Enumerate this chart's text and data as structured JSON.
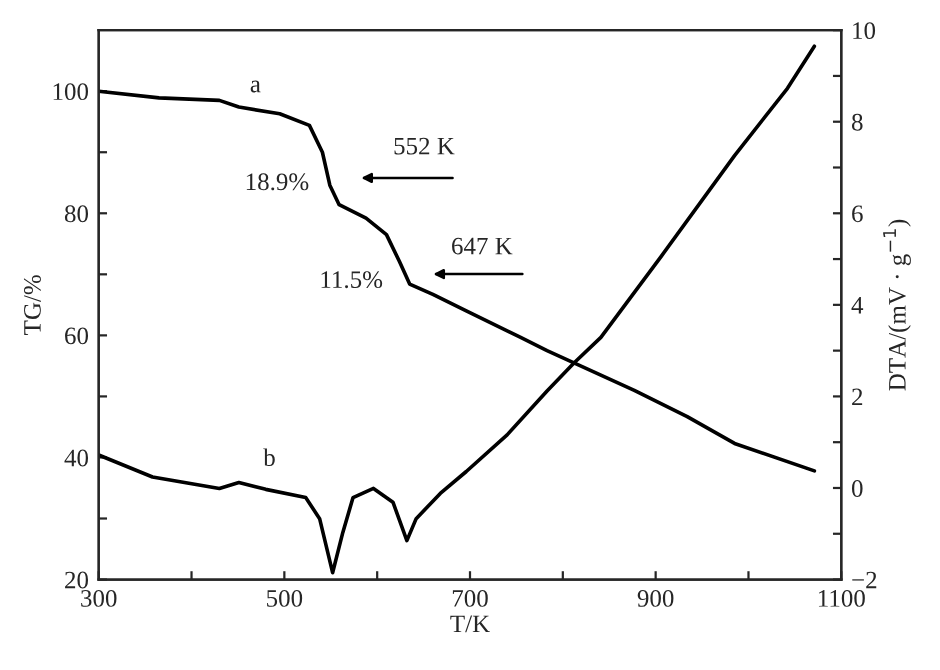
{
  "chart_data": {
    "type": "line",
    "xlabel": "T/K",
    "ylabel": "TG/%",
    "y2label": "DTA/(mV · g$^{−1}$)",
    "xlim": [
      300,
      1100
    ],
    "xticks": [
      300,
      {
        "value": 400,
        "label": null
      },
      500,
      {
        "value": 600,
        "label": null
      },
      700,
      {
        "value": 800,
        "label": null
      },
      900,
      {
        "value": 1000,
        "label": null
      },
      1100
    ],
    "ylim": [
      20,
      110
    ],
    "yticks": [
      20,
      {
        "value": 30,
        "label": null
      },
      40,
      {
        "value": 50,
        "label": null
      },
      60,
      {
        "value": 70,
        "label": null
      },
      80,
      {
        "value": 90,
        "label": null
      },
      100
    ],
    "y2lim": [
      -2,
      10
    ],
    "y2ticks": [
      {
        "value": -2,
        "label": "−2"
      },
      {
        "value": -1,
        "label": null
      },
      0,
      {
        "value": 1,
        "label": null
      },
      2,
      {
        "value": 3,
        "label": null
      },
      4,
      {
        "value": 5,
        "label": null
      },
      6,
      {
        "value": 7,
        "label": null
      },
      8,
      {
        "value": 9,
        "label": null
      },
      10
    ],
    "grid": false,
    "marker": "none",
    "line_style": "solid",
    "series": [
      {
        "color": "#000000",
        "x": [
          300,
          365,
          430,
          451,
          495,
          527,
          541,
          549,
          559,
          588,
          610,
          624,
          635,
          660,
          696,
          754,
          783,
          812,
          877,
          934,
          985,
          1071
        ],
        "values": [
          100,
          98.9,
          98.5,
          97.4,
          96.3,
          94.4,
          90.0,
          84.6,
          81.4,
          79.2,
          76.5,
          72.1,
          68.4,
          66.7,
          64.0,
          59.7,
          57.5,
          55.5,
          51.0,
          46.7,
          42.3,
          37.8
        ]
      },
      {
        "color": "#000000",
        "axis": "y2",
        "x": [
          300,
          358,
          430,
          451,
          480,
          523,
          538,
          552,
          563,
          574,
          596,
          617,
          632,
          642,
          668,
          696,
          740,
          783,
          812,
          841,
          906,
          985,
          1042,
          1071
        ],
        "values": [
          0.72,
          0.24,
          -0.01,
          0.12,
          -0.03,
          -0.21,
          -0.67,
          -1.85,
          -0.97,
          -0.21,
          -0.01,
          -0.31,
          -1.15,
          -0.67,
          -0.12,
          0.36,
          1.16,
          2.12,
          2.73,
          3.29,
          5.06,
          7.26,
          8.73,
          9.65
        ]
      }
    ],
    "annotations": [
      "a",
      "b",
      "552 K",
      "18.9%",
      "647 K",
      "11.5%"
    ]
  }
}
